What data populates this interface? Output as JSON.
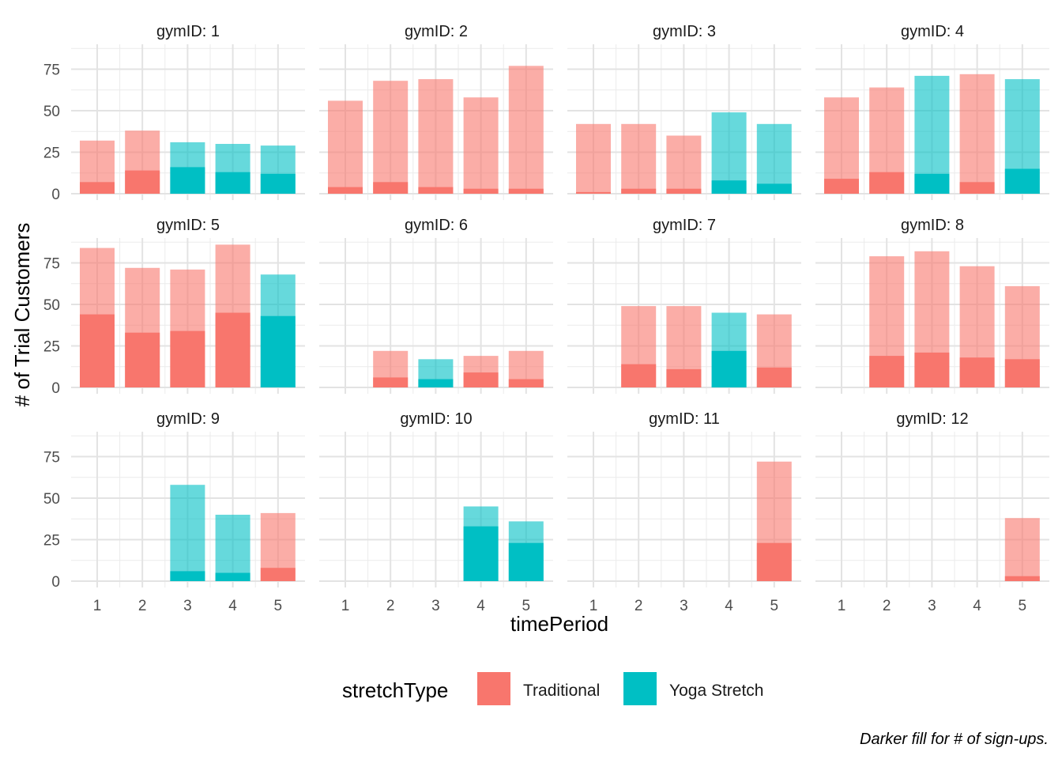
{
  "chart_data": {
    "type": "bar",
    "facet_variable": "gymID",
    "strip_prefix": "gymID: ",
    "ylabel": "# of Trial Customers",
    "xlabel": "timePeriod",
    "x": [
      1,
      2,
      3,
      4,
      5
    ],
    "ylim": [
      0,
      90
    ],
    "yticks": [
      0,
      25,
      50,
      75
    ],
    "legend": {
      "title": "stretchType",
      "placement": "bottom",
      "entries": [
        {
          "name": "Traditional",
          "color": "#F8766D"
        },
        {
          "name": "Yoga Stretch",
          "color": "#00BFC4"
        }
      ]
    },
    "caption": "Darker fill for # of sign-ups.",
    "grid": true,
    "facets": [
      {
        "gym": 1,
        "bars": [
          {
            "x": 1,
            "trials": 32,
            "signups": 7,
            "type": "Traditional"
          },
          {
            "x": 2,
            "trials": 38,
            "signups": 14,
            "type": "Traditional"
          },
          {
            "x": 3,
            "trials": 31,
            "signups": 16,
            "type": "Yoga Stretch"
          },
          {
            "x": 4,
            "trials": 30,
            "signups": 13,
            "type": "Yoga Stretch"
          },
          {
            "x": 5,
            "trials": 29,
            "signups": 12,
            "type": "Yoga Stretch"
          }
        ]
      },
      {
        "gym": 2,
        "bars": [
          {
            "x": 1,
            "trials": 56,
            "signups": 4,
            "type": "Traditional"
          },
          {
            "x": 2,
            "trials": 68,
            "signups": 7,
            "type": "Traditional"
          },
          {
            "x": 3,
            "trials": 69,
            "signups": 4,
            "type": "Traditional"
          },
          {
            "x": 4,
            "trials": 58,
            "signups": 3,
            "type": "Traditional"
          },
          {
            "x": 5,
            "trials": 77,
            "signups": 3,
            "type": "Traditional"
          }
        ]
      },
      {
        "gym": 3,
        "bars": [
          {
            "x": 1,
            "trials": 42,
            "signups": 1,
            "type": "Traditional"
          },
          {
            "x": 2,
            "trials": 42,
            "signups": 3,
            "type": "Traditional"
          },
          {
            "x": 3,
            "trials": 35,
            "signups": 3,
            "type": "Traditional"
          },
          {
            "x": 4,
            "trials": 49,
            "signups": 8,
            "type": "Yoga Stretch"
          },
          {
            "x": 5,
            "trials": 42,
            "signups": 6,
            "type": "Yoga Stretch"
          }
        ]
      },
      {
        "gym": 4,
        "bars": [
          {
            "x": 1,
            "trials": 58,
            "signups": 9,
            "type": "Traditional"
          },
          {
            "x": 2,
            "trials": 64,
            "signups": 13,
            "type": "Traditional"
          },
          {
            "x": 3,
            "trials": 71,
            "signups": 12,
            "type": "Yoga Stretch"
          },
          {
            "x": 4,
            "trials": 72,
            "signups": 7,
            "type": "Traditional"
          },
          {
            "x": 5,
            "trials": 69,
            "signups": 15,
            "type": "Yoga Stretch"
          }
        ]
      },
      {
        "gym": 5,
        "bars": [
          {
            "x": 1,
            "trials": 84,
            "signups": 44,
            "type": "Traditional"
          },
          {
            "x": 2,
            "trials": 72,
            "signups": 33,
            "type": "Traditional"
          },
          {
            "x": 3,
            "trials": 71,
            "signups": 34,
            "type": "Traditional"
          },
          {
            "x": 4,
            "trials": 86,
            "signups": 45,
            "type": "Traditional"
          },
          {
            "x": 5,
            "trials": 68,
            "signups": 43,
            "type": "Yoga Stretch"
          }
        ]
      },
      {
        "gym": 6,
        "bars": [
          {
            "x": 2,
            "trials": 22,
            "signups": 6,
            "type": "Traditional"
          },
          {
            "x": 3,
            "trials": 17,
            "signups": 5,
            "type": "Yoga Stretch"
          },
          {
            "x": 4,
            "trials": 19,
            "signups": 9,
            "type": "Traditional"
          },
          {
            "x": 5,
            "trials": 22,
            "signups": 5,
            "type": "Traditional"
          }
        ]
      },
      {
        "gym": 7,
        "bars": [
          {
            "x": 2,
            "trials": 49,
            "signups": 14,
            "type": "Traditional"
          },
          {
            "x": 3,
            "trials": 49,
            "signups": 11,
            "type": "Traditional"
          },
          {
            "x": 4,
            "trials": 45,
            "signups": 22,
            "type": "Yoga Stretch"
          },
          {
            "x": 5,
            "trials": 44,
            "signups": 12,
            "type": "Traditional"
          }
        ]
      },
      {
        "gym": 8,
        "bars": [
          {
            "x": 2,
            "trials": 79,
            "signups": 19,
            "type": "Traditional"
          },
          {
            "x": 3,
            "trials": 82,
            "signups": 21,
            "type": "Traditional"
          },
          {
            "x": 4,
            "trials": 73,
            "signups": 18,
            "type": "Traditional"
          },
          {
            "x": 5,
            "trials": 61,
            "signups": 17,
            "type": "Traditional"
          }
        ]
      },
      {
        "gym": 9,
        "bars": [
          {
            "x": 3,
            "trials": 58,
            "signups": 6,
            "type": "Yoga Stretch"
          },
          {
            "x": 4,
            "trials": 40,
            "signups": 5,
            "type": "Yoga Stretch"
          },
          {
            "x": 5,
            "trials": 41,
            "signups": 8,
            "type": "Traditional"
          }
        ]
      },
      {
        "gym": 10,
        "bars": [
          {
            "x": 4,
            "trials": 45,
            "signups": 33,
            "type": "Yoga Stretch"
          },
          {
            "x": 5,
            "trials": 36,
            "signups": 23,
            "type": "Yoga Stretch"
          }
        ]
      },
      {
        "gym": 11,
        "bars": [
          {
            "x": 5,
            "trials": 72,
            "signups": 23,
            "type": "Traditional"
          }
        ]
      },
      {
        "gym": 12,
        "bars": [
          {
            "x": 5,
            "trials": 38,
            "signups": 3,
            "type": "Traditional"
          }
        ]
      }
    ]
  }
}
